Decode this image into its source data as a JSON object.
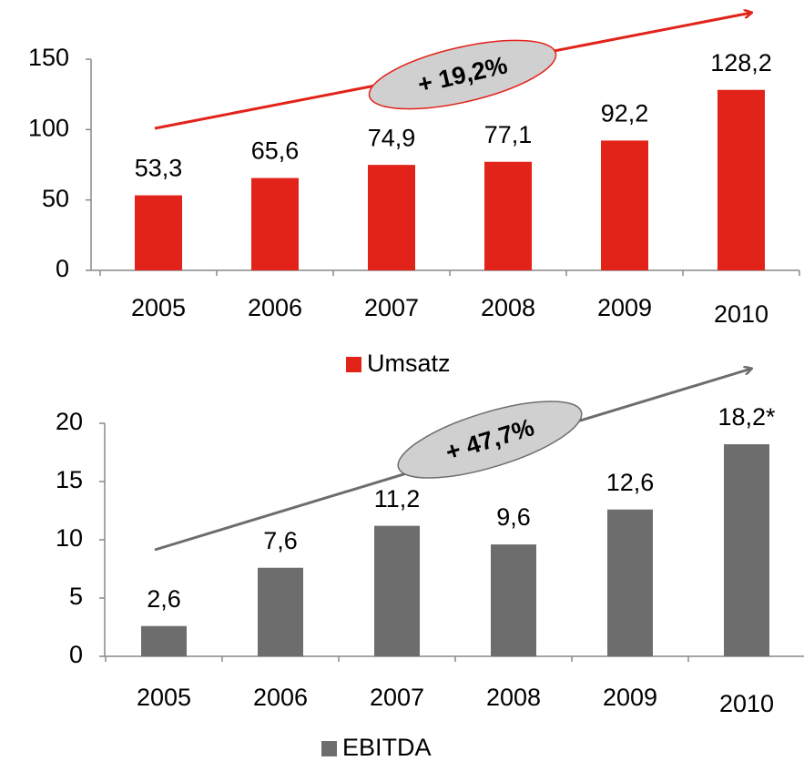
{
  "chart_data": [
    {
      "type": "bar",
      "categories": [
        "2005",
        "2006",
        "2007",
        "2008",
        "2009",
        "2010"
      ],
      "series": [
        {
          "name": "Umsatz",
          "color": "#e2231a",
          "values": [
            53.3,
            65.6,
            74.9,
            77.1,
            92.2,
            128.2
          ],
          "value_labels": [
            "53,3",
            "65,6",
            "74,9",
            "77,1",
            "92,2",
            "128,2"
          ]
        }
      ],
      "ylim": [
        0,
        150
      ],
      "yticks": [
        0,
        50,
        100,
        150
      ],
      "annotation": "+ 19,2%",
      "arrow_color": "#e2231a"
    },
    {
      "type": "bar",
      "categories": [
        "2005",
        "2006",
        "2007",
        "2008",
        "2009",
        "2010"
      ],
      "series": [
        {
          "name": "EBITDA",
          "color": "#6d6d6d",
          "values": [
            2.6,
            7.6,
            11.2,
            9.6,
            12.6,
            18.2
          ],
          "value_labels": [
            "2,6",
            "7,6",
            "11,2",
            "9,6",
            "12,6",
            "18,2*"
          ]
        }
      ],
      "ylim": [
        0,
        20
      ],
      "yticks": [
        0,
        5,
        10,
        15,
        20
      ],
      "annotation": "+ 47,7%",
      "arrow_color": "#6d6d6d"
    }
  ]
}
